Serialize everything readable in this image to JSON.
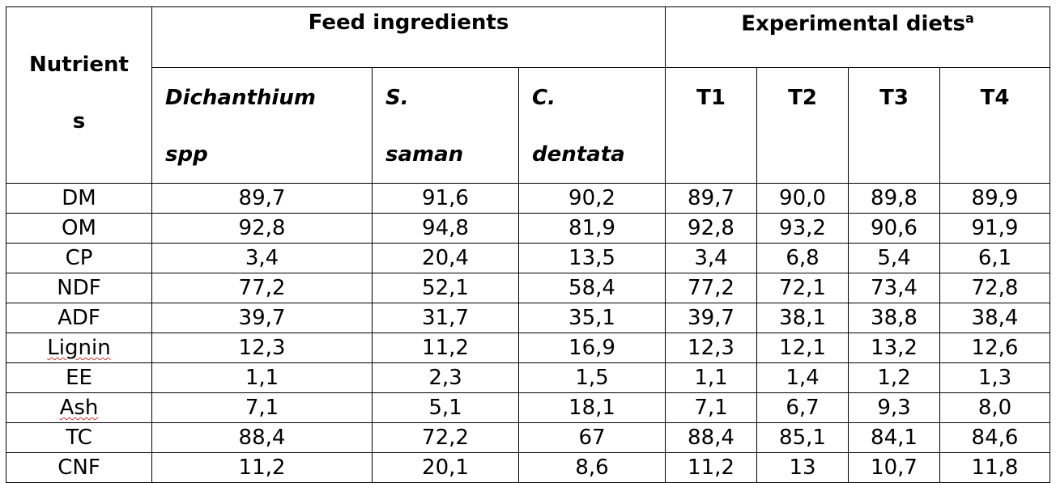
{
  "table": {
    "header": {
      "nutrient_line1": "Nutrient",
      "nutrient_line2": "s",
      "feed_ingredients": "Feed ingredients",
      "experimental_diets": "Experimental diets",
      "experimental_diets_sup": "a",
      "ingredients": [
        {
          "line1": "Dichanthium",
          "line2": "spp"
        },
        {
          "line1": "S.",
          "line2": "saman"
        },
        {
          "line1": "C.",
          "line2": "dentata"
        }
      ],
      "diets": [
        "T1",
        "T2",
        "T3",
        "T4"
      ]
    },
    "rows": [
      {
        "nutrient": "DM",
        "values": [
          "89,7",
          "91,6",
          "90,2",
          "89,7",
          "90,0",
          "89,8",
          "89,9"
        ]
      },
      {
        "nutrient": "OM",
        "values": [
          "92,8",
          "94,8",
          "81,9",
          "92,8",
          "93,2",
          "90,6",
          "91,9"
        ]
      },
      {
        "nutrient": "CP",
        "values": [
          "3,4",
          "20,4",
          "13,5",
          "3,4",
          "6,8",
          "5,4",
          "6,1"
        ]
      },
      {
        "nutrient": "NDF",
        "values": [
          "77,2",
          "52,1",
          "58,4",
          "77,2",
          "72,1",
          "73,4",
          "72,8"
        ]
      },
      {
        "nutrient": "ADF",
        "values": [
          "39,7",
          "31,7",
          "35,1",
          "39,7",
          "38,1",
          "38,8",
          "38,4"
        ]
      },
      {
        "nutrient": "Lignin",
        "values": [
          "12,3",
          "11,2",
          "16,9",
          "12,3",
          "12,1",
          "13,2",
          "12,6"
        ]
      },
      {
        "nutrient": "EE",
        "values": [
          "1,1",
          "2,3",
          "1,5",
          "1,1",
          "1,4",
          "1,2",
          "1,3"
        ]
      },
      {
        "nutrient": "Ash",
        "values": [
          "7,1",
          "5,1",
          "18,1",
          "7,1",
          "6,7",
          "9,3",
          "8,0"
        ]
      },
      {
        "nutrient": "TC",
        "values": [
          "88,4",
          "72,2",
          "67",
          "88,4",
          "85,1",
          "84,1",
          "84,6"
        ]
      },
      {
        "nutrient": "CNF",
        "values": [
          "11,2",
          "20,1",
          "8,6",
          "11,2",
          "13",
          "10,7",
          "11,8"
        ]
      }
    ]
  }
}
